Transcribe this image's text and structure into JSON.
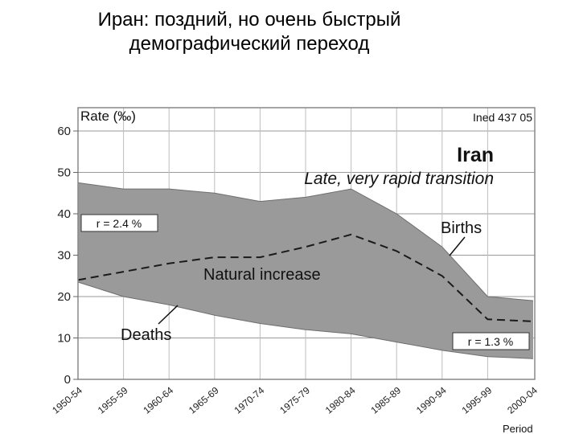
{
  "slide": {
    "title_line1": "Иран: поздний, но очень быстрый",
    "title_line2": "демографический переход"
  },
  "chart_data": {
    "type": "area",
    "title": "Iran",
    "subtitle": "Late, very rapid transition",
    "source": "Ined 437 05",
    "ylabel": "Rate (‰)",
    "xlabel": "Period",
    "ylim": [
      0,
      60
    ],
    "yticks": [
      0,
      10,
      20,
      30,
      40,
      50,
      60
    ],
    "grid": true,
    "categories": [
      "1950-54",
      "1955-59",
      "1960-64",
      "1965-69",
      "1970-74",
      "1975-79",
      "1980-84",
      "1985-89",
      "1990-94",
      "1995-99",
      "2000-04"
    ],
    "series": [
      {
        "name": "Births",
        "values": [
          47.5,
          46,
          46,
          45,
          43,
          44,
          46,
          40,
          32,
          20,
          19
        ]
      },
      {
        "name": "Deaths",
        "values": [
          23.5,
          20,
          18,
          15.5,
          13.5,
          12,
          11,
          9,
          7,
          5.5,
          5
        ]
      },
      {
        "name": "Natural increase",
        "values": [
          24,
          26,
          28,
          29.5,
          29.5,
          32,
          35,
          31,
          25,
          14.5,
          14
        ]
      }
    ],
    "annotations": {
      "births": "Births",
      "deaths": "Deaths",
      "natural_increase": "Natural increase",
      "r_start": "r = 2.4 %",
      "r_end": "r = 1.3 %"
    },
    "colors": {
      "fill": "#9a9a9a",
      "frame": "#888888",
      "dash": "#1a1a1a"
    }
  }
}
